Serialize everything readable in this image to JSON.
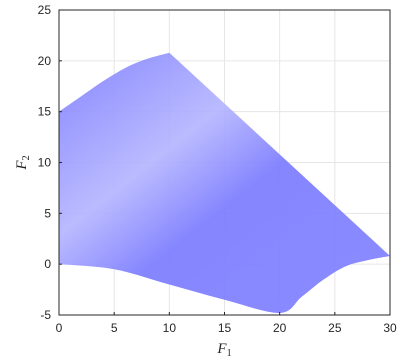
{
  "chart_data": {
    "type": "area",
    "title": "",
    "xlabel": {
      "main": "F",
      "sub": "1"
    },
    "ylabel": {
      "main": "F",
      "sub": "2"
    },
    "xlim": [
      0,
      30
    ],
    "ylim": [
      -5,
      25
    ],
    "xticks": [
      "0",
      "5",
      "10",
      "15",
      "20",
      "25",
      "30"
    ],
    "yticks": [
      "-5",
      "0",
      "5",
      "10",
      "15",
      "20",
      "25"
    ],
    "grid": true,
    "fill_color": "#7f7fff",
    "fill_color_light": "#b3b3ff",
    "region": {
      "upper_boundary": [
        [
          0,
          15
        ],
        [
          2,
          16.5
        ],
        [
          4,
          18
        ],
        [
          6,
          19.3
        ],
        [
          8,
          20.2
        ],
        [
          10,
          20.8
        ],
        [
          15,
          15.8
        ],
        [
          20,
          10.8
        ],
        [
          25,
          5.8
        ],
        [
          30,
          0.8
        ]
      ],
      "lower_boundary": [
        [
          0,
          0
        ],
        [
          5,
          -0.5
        ],
        [
          10,
          -2
        ],
        [
          15,
          -3.5
        ],
        [
          20,
          -4.8
        ],
        [
          22,
          -3.2
        ],
        [
          24,
          -1.5
        ],
        [
          26,
          -0.2
        ],
        [
          28,
          0.4
        ],
        [
          30,
          0.8
        ]
      ]
    }
  }
}
